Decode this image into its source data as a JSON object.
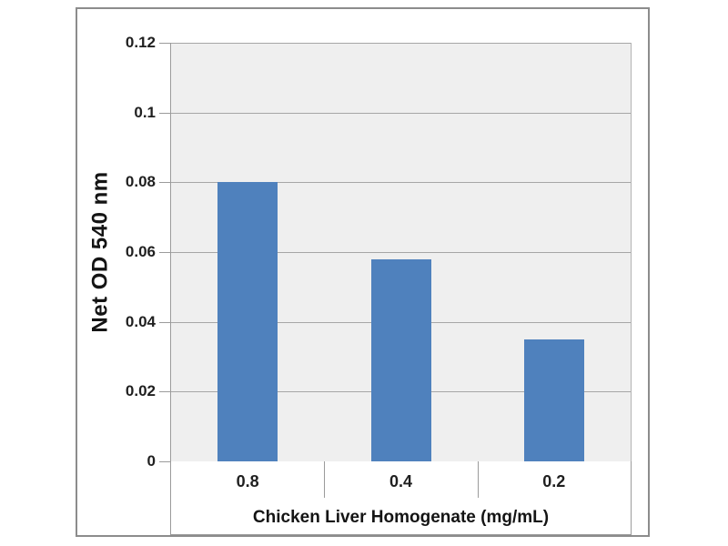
{
  "chart_data": {
    "type": "bar",
    "title": "",
    "categories": [
      "0.8",
      "0.4",
      "0.2"
    ],
    "values": [
      0.08,
      0.058,
      0.035
    ],
    "series": [
      {
        "name": "Net OD 540 nm",
        "values": [
          0.08,
          0.058,
          0.035
        ]
      }
    ],
    "xlabel": "Chicken Liver Homogenate (mg/mL)",
    "ylabel": "Net OD 540 nm",
    "ylim": [
      0,
      0.12
    ],
    "ytick_step": 0.02,
    "yticks": [
      "0",
      "0.02",
      "0.04",
      "0.06",
      "0.08",
      "0.1",
      "0.12"
    ],
    "grid": true,
    "legend": false,
    "colors": {
      "bar": "#4f81bd",
      "plot_bg": "#efefef",
      "gridline": "#a6a6a6",
      "axis": "#9b9b9b",
      "frame_border": "#8c8c8c",
      "text": "#1f1f1f",
      "background": "#ffffff"
    }
  }
}
